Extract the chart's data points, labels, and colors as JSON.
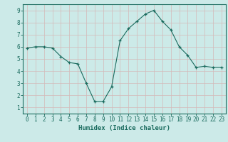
{
  "x": [
    0,
    1,
    2,
    3,
    4,
    5,
    6,
    7,
    8,
    9,
    10,
    11,
    12,
    13,
    14,
    15,
    16,
    17,
    18,
    19,
    20,
    21,
    22,
    23
  ],
  "y": [
    5.9,
    6.0,
    6.0,
    5.9,
    5.2,
    4.7,
    4.6,
    3.0,
    1.5,
    1.5,
    2.7,
    6.5,
    7.5,
    8.1,
    8.7,
    9.0,
    8.1,
    7.4,
    6.0,
    5.3,
    4.3,
    4.4,
    4.3,
    4.3
  ],
  "line_color": "#1a6b5e",
  "marker": "+",
  "bg_color": "#cceae8",
  "grid_color": "#b8d8d6",
  "axis_color": "#1a6b5e",
  "xlabel": "Humidex (Indice chaleur)",
  "xlabel_fontsize": 6.5,
  "tick_fontsize": 5.5,
  "ylim": [
    0.5,
    9.5
  ],
  "xlim": [
    -0.5,
    23.5
  ],
  "yticks": [
    1,
    2,
    3,
    4,
    5,
    6,
    7,
    8,
    9
  ],
  "xticks": [
    0,
    1,
    2,
    3,
    4,
    5,
    6,
    7,
    8,
    9,
    10,
    11,
    12,
    13,
    14,
    15,
    16,
    17,
    18,
    19,
    20,
    21,
    22,
    23
  ]
}
